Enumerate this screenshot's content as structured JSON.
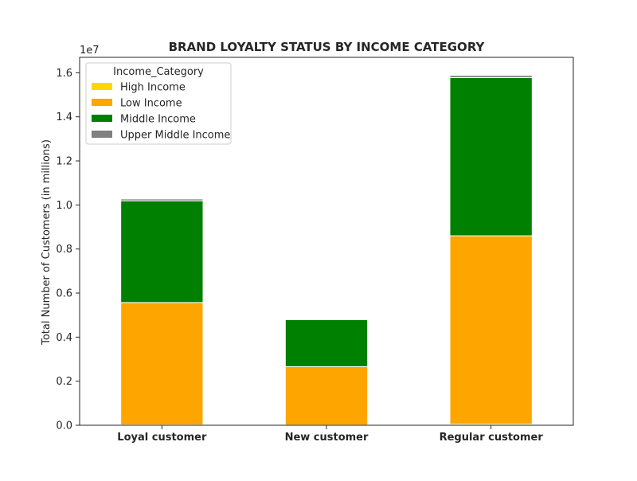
{
  "chart_data": {
    "type": "bar",
    "stacked": true,
    "title": "BRAND LOYALTY STATUS BY INCOME CATEGORY",
    "ylabel": "Total Number of Customers (in millions)",
    "y_offset_label": "1e7",
    "ylim": [
      0,
      16700000
    ],
    "y_ticks": [
      0,
      2000000,
      4000000,
      6000000,
      8000000,
      10000000,
      12000000,
      14000000,
      16000000
    ],
    "y_tick_labels": [
      "0.0",
      "0.2",
      "0.4",
      "0.6",
      "0.8",
      "1.0",
      "1.2",
      "1.4",
      "1.6"
    ],
    "categories": [
      "Loyal customer",
      "New customer",
      "Regular customer"
    ],
    "legend_title": "Income_Category",
    "legend_position": "top-left",
    "grid": false,
    "series": [
      {
        "name": "High Income",
        "color": "#FFD700",
        "values": [
          20000,
          10000,
          50000
        ]
      },
      {
        "name": "Low Income",
        "color": "#FFA500",
        "values": [
          5550000,
          2650000,
          8550000
        ]
      },
      {
        "name": "Middle Income",
        "color": "#008000",
        "values": [
          4620000,
          2130000,
          7180000
        ]
      },
      {
        "name": "Upper Middle Income",
        "color": "#808080",
        "values": [
          80000,
          20000,
          100000
        ]
      }
    ]
  }
}
